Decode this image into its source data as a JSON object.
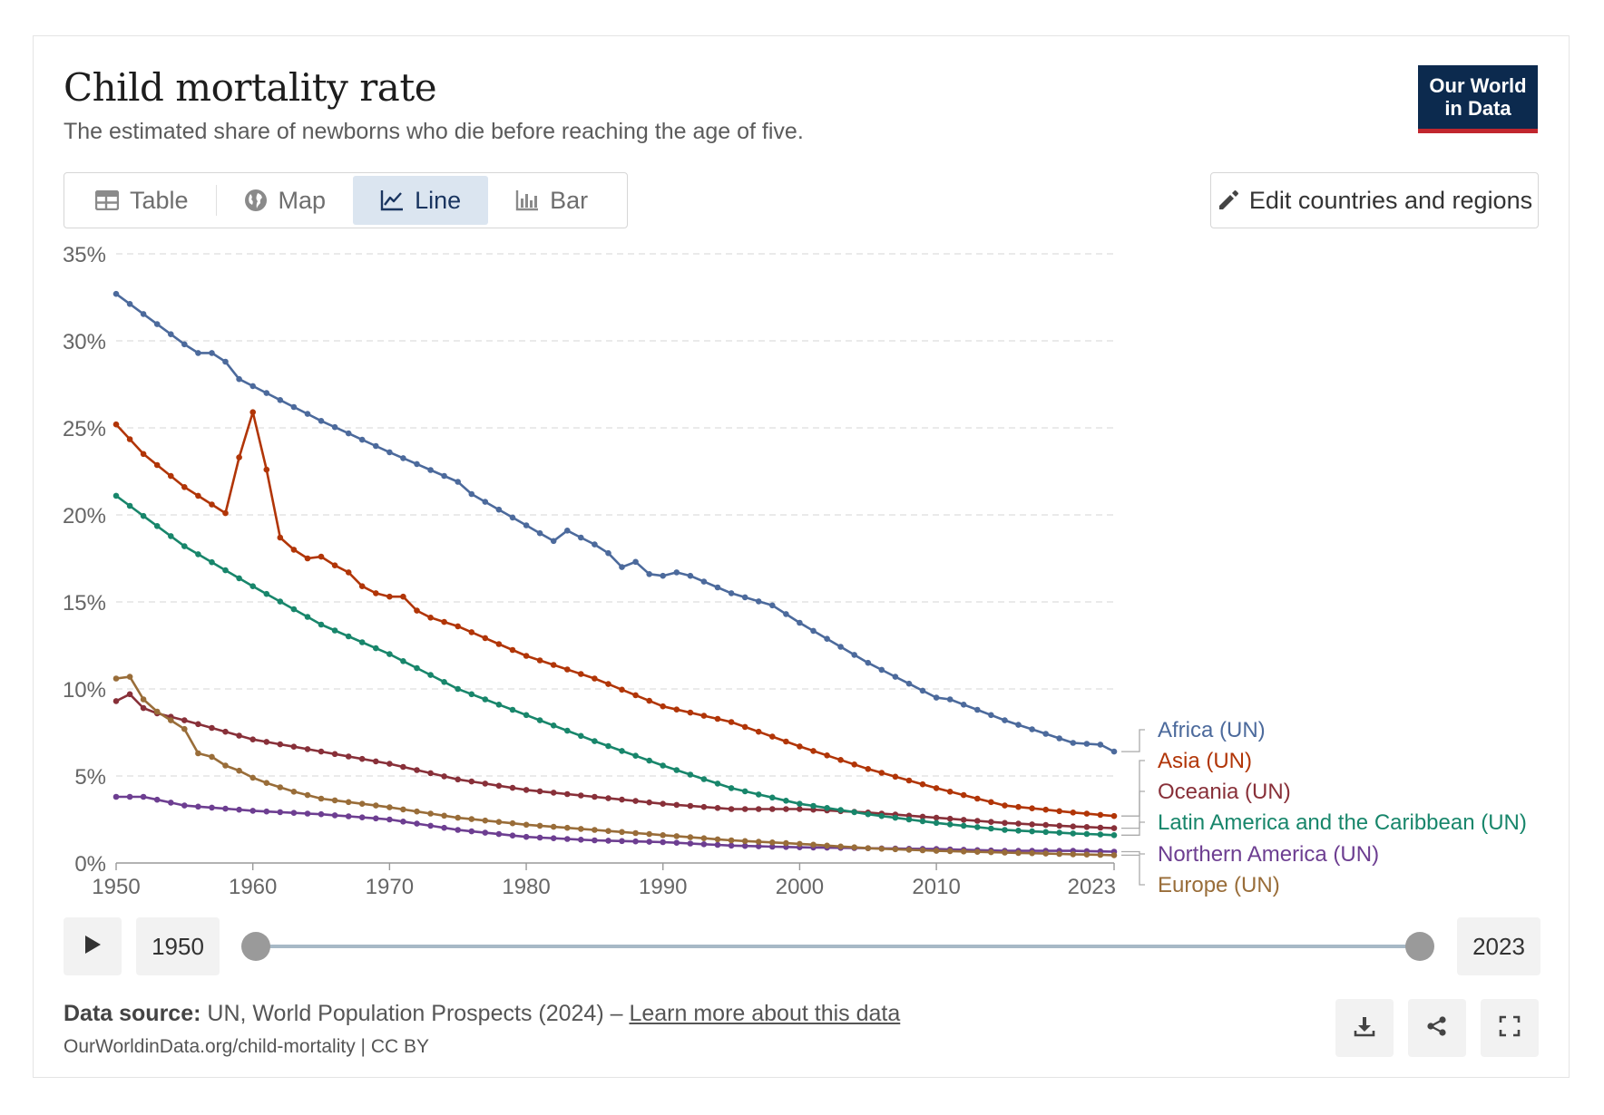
{
  "header": {
    "title": "Child mortality rate",
    "subtitle": "The estimated share of newborns who die before reaching the age of five."
  },
  "logo": {
    "line1": "Our World",
    "line2": "in Data"
  },
  "tabs": [
    {
      "label": "Table",
      "icon": "table-icon",
      "active": false
    },
    {
      "label": "Map",
      "icon": "globe-icon",
      "active": false
    },
    {
      "label": "Line",
      "icon": "line-chart-icon",
      "active": true
    },
    {
      "label": "Bar",
      "icon": "bar-chart-icon",
      "active": false
    }
  ],
  "edit_button": {
    "label": "Edit countries and regions",
    "icon": "pencil-icon"
  },
  "timeline": {
    "start_label": "1950",
    "end_label": "2023",
    "play_icon": "play-icon"
  },
  "footer": {
    "source_prefix": "Data source:",
    "source_text": "UN, World Population Prospects (2024) –",
    "source_link": "Learn more about this data",
    "url": "OurWorldinData.org/child-mortality | CC BY",
    "buttons": [
      "download-icon",
      "share-icon",
      "fullscreen-icon"
    ]
  },
  "colors": {
    "africa": "#4c6a9c",
    "asia": "#b13507",
    "oceania": "#883039",
    "latam": "#18866b",
    "namerica": "#6d3e91",
    "europe": "#996d39",
    "grid": "#dddddd",
    "accent": "#0c2a4e"
  },
  "chart_data": {
    "type": "line",
    "title": "Child mortality rate",
    "ylim": [
      0,
      35
    ],
    "xlim": [
      1950,
      2023
    ],
    "y_ticks": [
      "0%",
      "5%",
      "10%",
      "15%",
      "20%",
      "25%",
      "30%",
      "35%"
    ],
    "y_tick_values": [
      0,
      5,
      10,
      15,
      20,
      25,
      30,
      35
    ],
    "x_ticks": [
      "1950",
      "1960",
      "1970",
      "1980",
      "1990",
      "2000",
      "2010",
      "2023"
    ],
    "x_tick_values": [
      1950,
      1960,
      1970,
      1980,
      1990,
      2000,
      2010,
      2023
    ],
    "grid": "horizontal dashed",
    "legend": "right, end-of-line labels",
    "series": [
      {
        "name": "Africa (UN)",
        "color": "#4c6a9c",
        "x": [
          1950,
          1955,
          1956,
          1957,
          1958,
          1959,
          1960,
          1965,
          1970,
          1975,
          1976,
          1980,
          1982,
          1983,
          1985,
          1986,
          1987,
          1988,
          1989,
          1990,
          1991,
          1992,
          1995,
          1998,
          2000,
          2005,
          2010,
          2011,
          2015,
          2020,
          2022,
          2023
        ],
        "y": [
          32.7,
          29.8,
          29.3,
          29.3,
          28.8,
          27.8,
          27.4,
          25.4,
          23.6,
          21.9,
          21.2,
          19.4,
          18.5,
          19.1,
          18.3,
          17.8,
          17.0,
          17.3,
          16.6,
          16.5,
          16.7,
          16.5,
          15.5,
          14.8,
          13.8,
          11.5,
          9.5,
          9.4,
          8.2,
          6.9,
          6.8,
          6.4
        ]
      },
      {
        "name": "Asia (UN)",
        "color": "#b13507",
        "x": [
          1950,
          1952,
          1955,
          1957,
          1958,
          1959,
          1960,
          1961,
          1962,
          1963,
          1964,
          1965,
          1966,
          1967,
          1968,
          1969,
          1970,
          1971,
          1972,
          1973,
          1975,
          1980,
          1985,
          1990,
          1995,
          2000,
          2005,
          2010,
          2015,
          2020,
          2023
        ],
        "y": [
          25.2,
          23.5,
          21.6,
          20.6,
          20.1,
          23.3,
          25.9,
          22.6,
          18.7,
          18.0,
          17.5,
          17.6,
          17.1,
          16.7,
          15.9,
          15.5,
          15.3,
          15.3,
          14.5,
          14.1,
          13.6,
          11.9,
          10.6,
          9.0,
          8.1,
          6.7,
          5.4,
          4.3,
          3.3,
          2.9,
          2.7
        ]
      },
      {
        "name": "Oceania (UN)",
        "color": "#883039",
        "x": [
          1950,
          1951,
          1952,
          1953,
          1955,
          1960,
          1965,
          1970,
          1975,
          1980,
          1985,
          1990,
          1995,
          2000,
          2005,
          2010,
          2015,
          2020,
          2023
        ],
        "y": [
          9.3,
          9.7,
          8.9,
          8.6,
          8.2,
          7.1,
          6.4,
          5.7,
          4.8,
          4.2,
          3.8,
          3.4,
          3.1,
          3.1,
          2.9,
          2.6,
          2.3,
          2.1,
          2.0
        ]
      },
      {
        "name": "Latin America and the Caribbean (UN)",
        "color": "#18866b",
        "x": [
          1950,
          1955,
          1960,
          1965,
          1970,
          1975,
          1980,
          1985,
          1990,
          1995,
          2000,
          2005,
          2010,
          2015,
          2020,
          2023
        ],
        "y": [
          21.1,
          18.2,
          15.9,
          13.7,
          12.0,
          10.0,
          8.5,
          7.0,
          5.6,
          4.3,
          3.4,
          2.8,
          2.3,
          1.9,
          1.7,
          1.6
        ]
      },
      {
        "name": "Northern America (UN)",
        "color": "#6d3e91",
        "x": [
          1950,
          1952,
          1955,
          1960,
          1965,
          1970,
          1975,
          1980,
          1985,
          1990,
          1995,
          2000,
          2005,
          2010,
          2015,
          2020,
          2023
        ],
        "y": [
          3.8,
          3.8,
          3.3,
          3.0,
          2.8,
          2.5,
          1.9,
          1.5,
          1.3,
          1.2,
          1.0,
          0.9,
          0.85,
          0.8,
          0.7,
          0.7,
          0.65
        ]
      },
      {
        "name": "Europe (UN)",
        "color": "#996d39",
        "x": [
          1950,
          1951,
          1952,
          1953,
          1955,
          1956,
          1957,
          1958,
          1959,
          1960,
          1961,
          1963,
          1965,
          1970,
          1975,
          1980,
          1985,
          1990,
          1995,
          2000,
          2005,
          2010,
          2015,
          2020,
          2023
        ],
        "y": [
          10.6,
          10.7,
          9.4,
          8.7,
          7.7,
          6.3,
          6.1,
          5.6,
          5.3,
          4.9,
          4.6,
          4.1,
          3.7,
          3.2,
          2.6,
          2.2,
          1.9,
          1.6,
          1.3,
          1.1,
          0.85,
          0.7,
          0.6,
          0.5,
          0.45
        ]
      }
    ]
  }
}
